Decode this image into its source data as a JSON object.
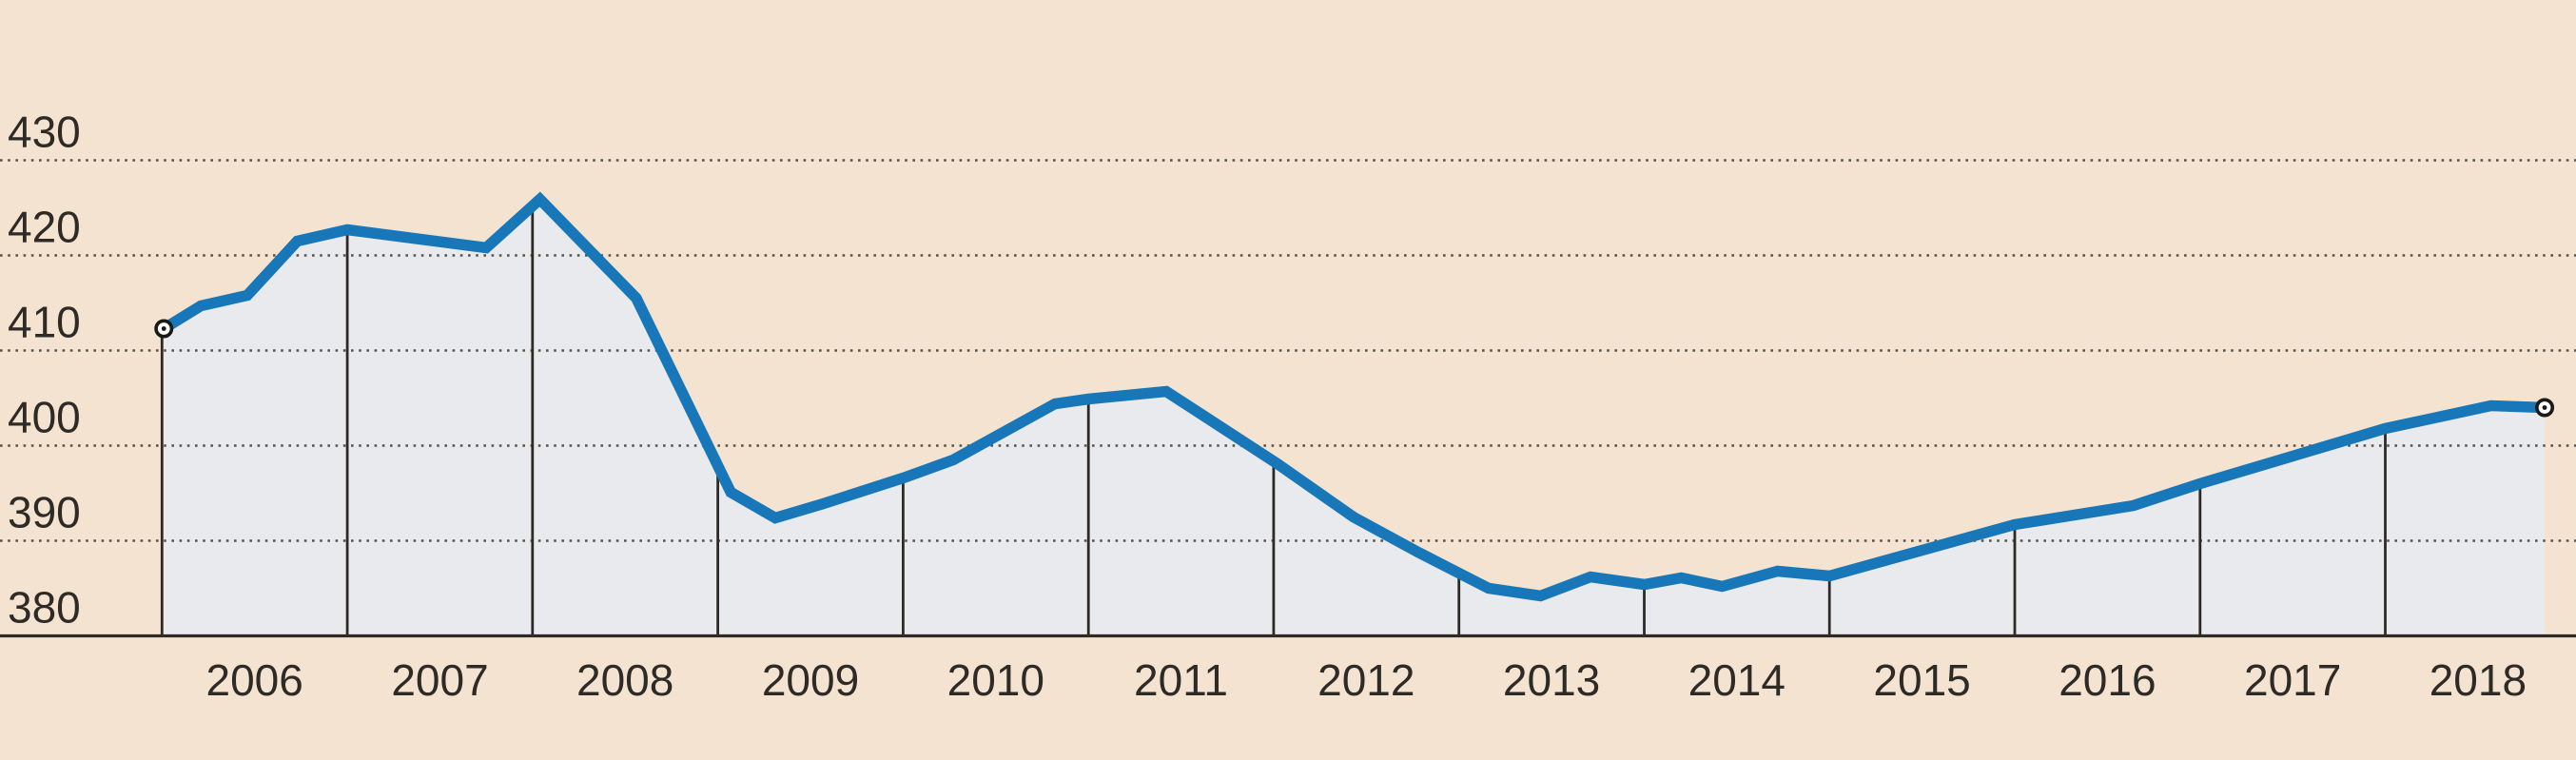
{
  "chart_data": {
    "type": "area",
    "title": "",
    "legend": "none",
    "grid": "dotted horizontal gridlines, solid baseline",
    "x_ticks": [
      "2006",
      "2007",
      "2008",
      "2009",
      "2010",
      "2011",
      "2012",
      "2013",
      "2014",
      "2015",
      "2016",
      "2017",
      "2018"
    ],
    "y_ticks": [
      "380",
      "390",
      "400",
      "410",
      "420",
      "430"
    ],
    "y_gridline_values": [
      390,
      400,
      410,
      420,
      430
    ],
    "y_baseline_value": 380,
    "ylim": [
      380,
      435
    ],
    "xlim_years": [
      2005.13,
      2019.03
    ],
    "x_year_dividers": [
      2006,
      2007,
      2008,
      2009,
      2010,
      2011,
      2012,
      2013,
      2014,
      2015,
      2016,
      2017,
      2018
    ],
    "endpoint_markers": true,
    "series": [
      {
        "name": "value",
        "points": [
          [
            2006.01,
            412.3
          ],
          [
            2006.21,
            414.7
          ],
          [
            2006.46,
            415.8
          ],
          [
            2006.73,
            421.5
          ],
          [
            2007.0,
            422.7
          ],
          [
            2007.75,
            420.8
          ],
          [
            2008.04,
            425.9
          ],
          [
            2008.56,
            415.5
          ],
          [
            2009.07,
            395.1
          ],
          [
            2009.31,
            392.4
          ],
          [
            2009.57,
            393.9
          ],
          [
            2010.0,
            396.6
          ],
          [
            2010.27,
            398.5
          ],
          [
            2010.82,
            404.4
          ],
          [
            2011.0,
            404.9
          ],
          [
            2011.42,
            405.7
          ],
          [
            2012.02,
            398.1
          ],
          [
            2012.43,
            392.5
          ],
          [
            2012.78,
            388.8
          ],
          [
            2013.16,
            385.0
          ],
          [
            2013.44,
            384.2
          ],
          [
            2013.71,
            386.2
          ],
          [
            2014.0,
            385.4
          ],
          [
            2014.2,
            386.1
          ],
          [
            2014.42,
            385.2
          ],
          [
            2014.72,
            386.8
          ],
          [
            2015.0,
            386.3
          ],
          [
            2016.0,
            391.7
          ],
          [
            2016.64,
            393.7
          ],
          [
            2017.0,
            396.0
          ],
          [
            2018.0,
            401.8
          ],
          [
            2018.57,
            404.2
          ],
          [
            2018.86,
            404.0
          ]
        ]
      }
    ],
    "first_value": 412.3,
    "last_value": 404.0,
    "max_value": 425.9,
    "min_value": 384.2
  },
  "colors": {
    "background": "#f5e3d1",
    "area_fill": "#e9eaed",
    "line": "#1777b8",
    "grid_dots": "#57514b",
    "axis": "#2e2b26",
    "year_divider": "#2e2b26",
    "label_text": "#2e2b27",
    "marker_ring": "#1a1916",
    "marker_fill": "#ffffff"
  }
}
